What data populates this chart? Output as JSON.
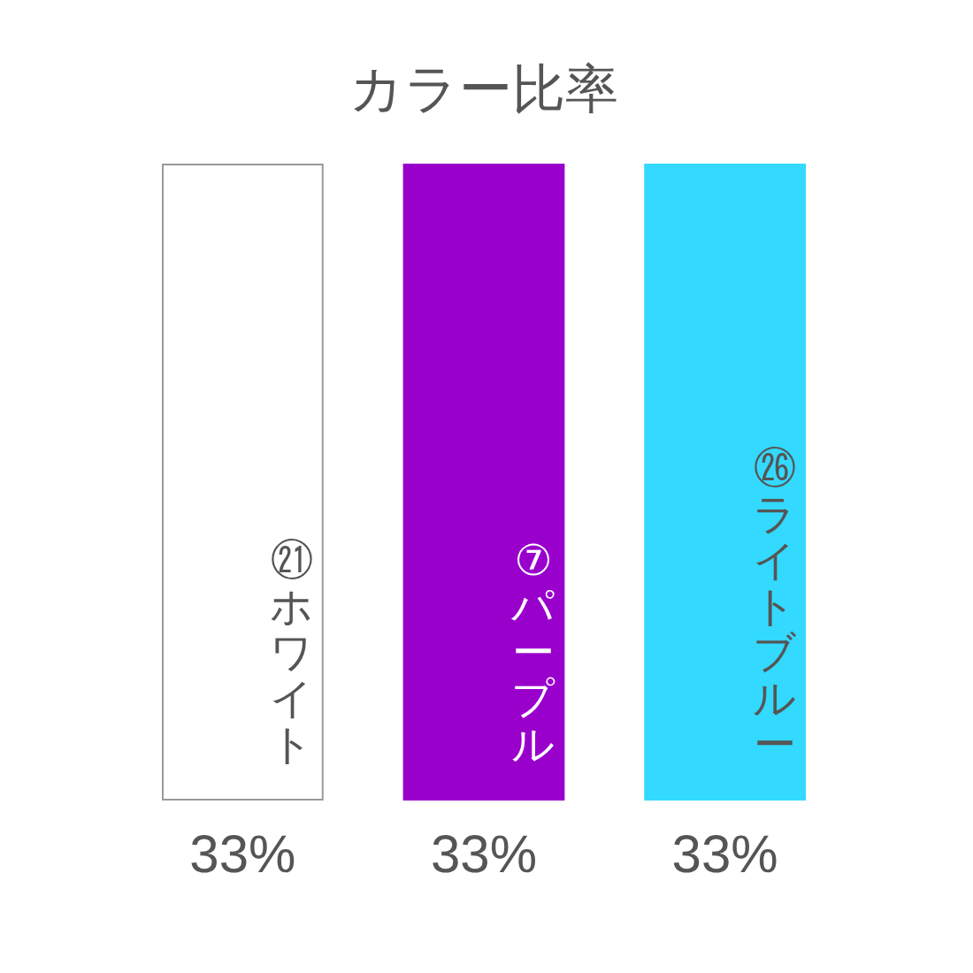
{
  "chart_data": {
    "type": "bar",
    "title": "カラー比率",
    "categories": [
      "㉑ホワイト",
      "⑦パープル",
      "㉖ライトブルー"
    ],
    "values": [
      33,
      33,
      33
    ],
    "colors": [
      "#ffffff",
      "#9900cc",
      "#33d9ff"
    ],
    "value_labels": [
      "33%",
      "33%",
      "33%"
    ]
  }
}
